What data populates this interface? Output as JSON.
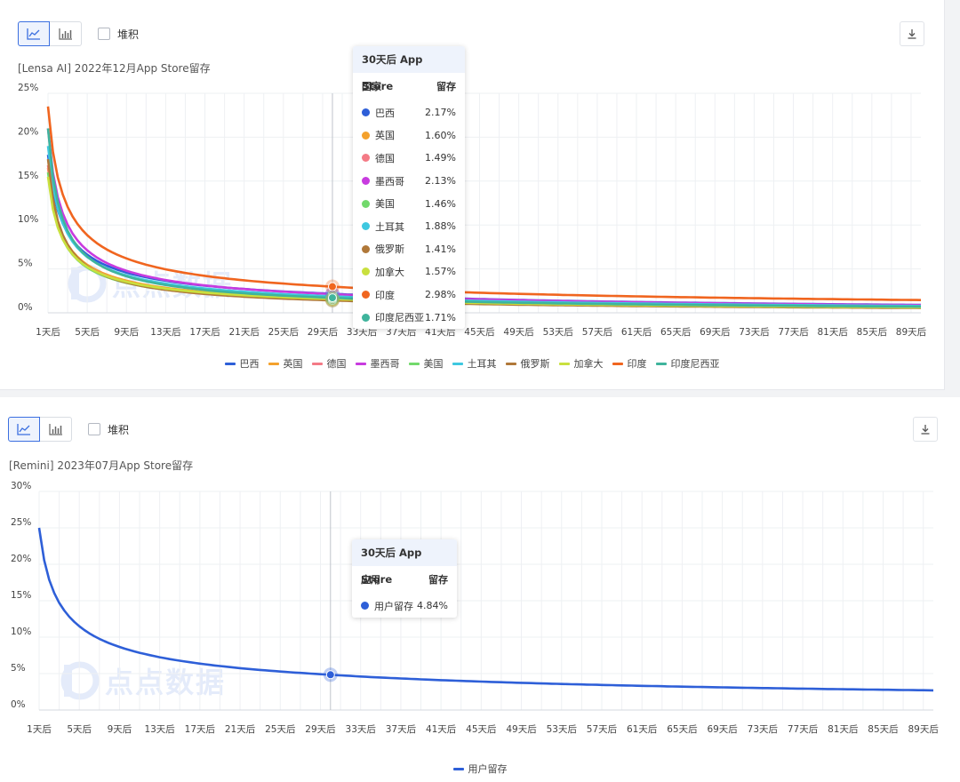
{
  "toolbar": {
    "stack_label": "堆积"
  },
  "charts": [
    {
      "subtitle": "[Lensa AI]  2022年12月App Store留存",
      "tooltip": {
        "title": "30天后 App Store",
        "col_name": "国家",
        "col_value": "留存",
        "rows": [
          {
            "name": "巴西",
            "value": "2.17%"
          },
          {
            "name": "英国",
            "value": "1.60%"
          },
          {
            "name": "德国",
            "value": "1.49%"
          },
          {
            "name": "墨西哥",
            "value": "2.13%"
          },
          {
            "name": "美国",
            "value": "1.46%"
          },
          {
            "name": "土耳其",
            "value": "1.88%"
          },
          {
            "name": "俄罗斯",
            "value": "1.41%"
          },
          {
            "name": "加拿大",
            "value": "1.57%"
          },
          {
            "name": "印度",
            "value": "2.98%"
          },
          {
            "name": "印度尼西亚",
            "value": "1.71%"
          }
        ]
      },
      "watermark": "点点数据"
    },
    {
      "subtitle": "[Remini]  2023年07月App Store留存",
      "tooltip": {
        "title": "30天后 App Store",
        "col_name": "应用",
        "col_value": "留存",
        "rows": [
          {
            "name": "用户留存",
            "value": "4.84%"
          }
        ]
      },
      "watermark": "点点数据"
    }
  ],
  "chart_data": [
    {
      "type": "line",
      "title": "[Lensa AI]  2022年12月App Store留存",
      "x_start": 1,
      "x_end": 90,
      "x_tick_labels": [
        "1天后",
        "5天后",
        "9天后",
        "13天后",
        "17天后",
        "21天后",
        "25天后",
        "29天后",
        "33天后",
        "37天后",
        "41天后",
        "45天后",
        "49天后",
        "53天后",
        "57天后",
        "61天后",
        "65天后",
        "69天后",
        "73天后",
        "77天后",
        "81天后",
        "85天后",
        "89天后"
      ],
      "y_tick_labels": [
        "0%",
        "5%",
        "10%",
        "15%",
        "20%",
        "25%"
      ],
      "ylim": [
        0,
        25
      ],
      "y_unit": "%",
      "grid": true,
      "legend": "bottom",
      "tooltip_day": 30,
      "series": [
        {
          "name": "巴西",
          "color": "#2e5fd8",
          "day1": 18.0,
          "day30": 2.17,
          "day90": 0.9
        },
        {
          "name": "英国",
          "color": "#f4a12c",
          "day1": 16.5,
          "day30": 1.6,
          "day90": 0.65
        },
        {
          "name": "德国",
          "color": "#f47a86",
          "day1": 16.8,
          "day30": 1.49,
          "day90": 0.6
        },
        {
          "name": "墨西哥",
          "color": "#c83bdf",
          "day1": 21.0,
          "day30": 2.13,
          "day90": 0.88
        },
        {
          "name": "美国",
          "color": "#72d96c",
          "day1": 16.0,
          "day30": 1.46,
          "day90": 0.6
        },
        {
          "name": "土耳其",
          "color": "#3ec8e0",
          "day1": 19.0,
          "day30": 1.88,
          "day90": 0.78
        },
        {
          "name": "俄罗斯",
          "color": "#b07839",
          "day1": 17.5,
          "day30": 1.41,
          "day90": 0.55
        },
        {
          "name": "加拿大",
          "color": "#c9e03e",
          "day1": 15.5,
          "day30": 1.57,
          "day90": 0.62
        },
        {
          "name": "印度",
          "color": "#f0651f",
          "day1": 23.5,
          "day30": 2.98,
          "day90": 1.45
        },
        {
          "name": "印度尼西亚",
          "color": "#3fb49c",
          "day1": 21.0,
          "day30": 1.71,
          "day90": 0.7
        }
      ]
    },
    {
      "type": "line",
      "title": "[Remini]  2023年07月App Store留存",
      "x_start": 1,
      "x_end": 90,
      "x_tick_labels": [
        "1天后",
        "5天后",
        "9天后",
        "13天后",
        "17天后",
        "21天后",
        "25天后",
        "29天后",
        "33天后",
        "37天后",
        "41天后",
        "45天后",
        "49天后",
        "53天后",
        "57天后",
        "61天后",
        "65天后",
        "69天后",
        "73天后",
        "77天后",
        "81天后",
        "85天后",
        "89天后"
      ],
      "y_tick_labels": [
        "0%",
        "5%",
        "10%",
        "15%",
        "20%",
        "25%",
        "30%"
      ],
      "ylim": [
        0,
        30
      ],
      "y_unit": "%",
      "grid": true,
      "legend": "bottom",
      "tooltip_day": 30,
      "series": [
        {
          "name": "用户留存",
          "color": "#2e5fd8",
          "day1": 25.0,
          "day30": 4.84,
          "day90": 2.7
        }
      ]
    }
  ]
}
